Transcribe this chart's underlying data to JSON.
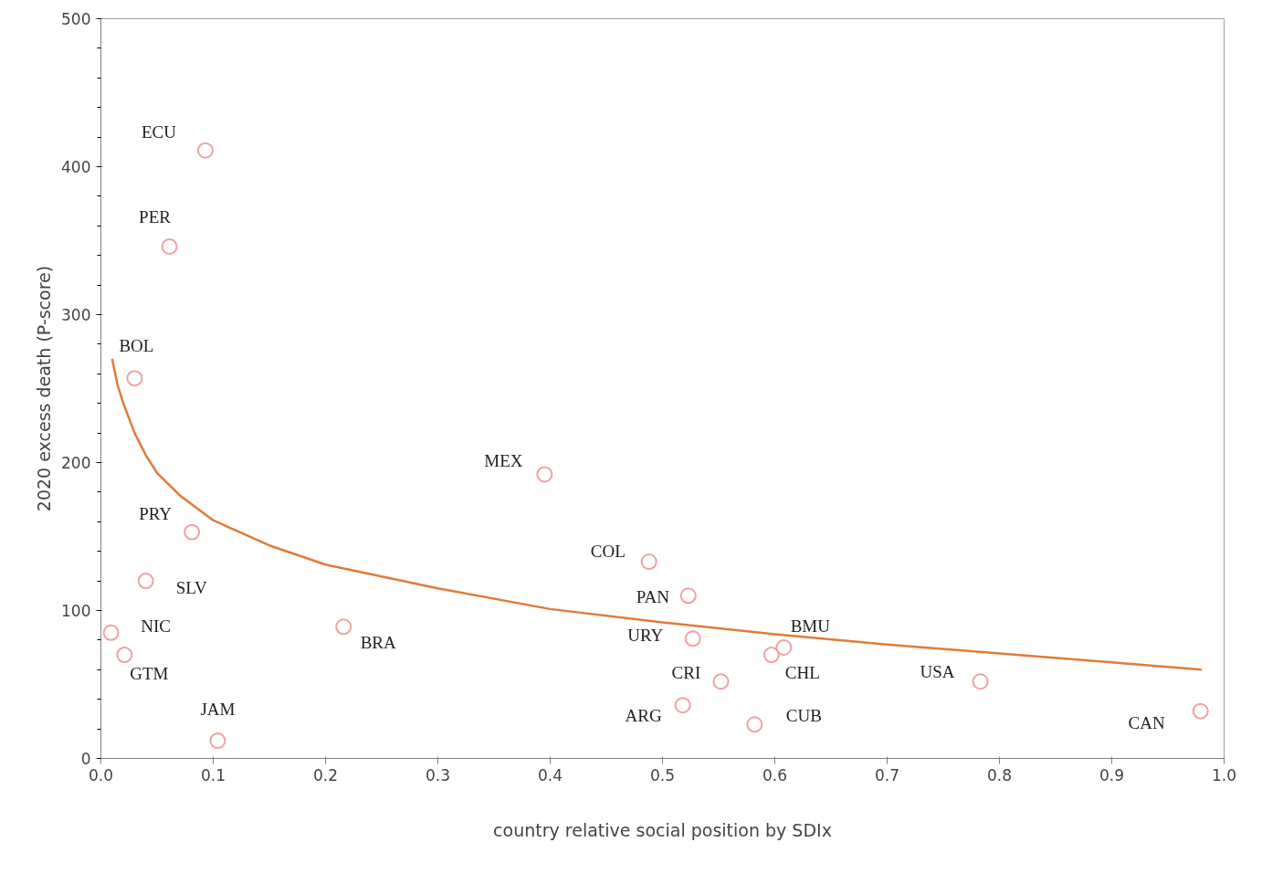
{
  "chart_data": {
    "type": "scatter",
    "xlabel": "country relative social position by SDIx",
    "ylabel": "2020 excess death (P-score)",
    "xlim": [
      0,
      1
    ],
    "ylim": [
      0,
      500
    ],
    "xticks": [
      {
        "value": 0,
        "label": "0.0"
      },
      0.1,
      0.2,
      0.3,
      0.4,
      0.5,
      0.6,
      0.7,
      0.8,
      0.9,
      {
        "value": 1,
        "label": "1.0"
      }
    ],
    "yticks": [
      0,
      100,
      200,
      300,
      400,
      500
    ],
    "grid": false,
    "series": [
      {
        "color": "#f0a0a0",
        "marker": "circle",
        "x": [
          0.093,
          0.061,
          0.03,
          0.395,
          0.081,
          0.488,
          0.04,
          0.523,
          0.009,
          0.216,
          0.527,
          0.021,
          0.608,
          0.597,
          0.552,
          0.783,
          0.518,
          0.582,
          0.979,
          0.104
        ],
        "values": [
          411,
          346,
          257,
          192,
          153,
          133,
          120,
          110,
          85,
          89,
          81,
          70,
          75,
          70,
          52,
          52,
          36,
          23,
          32,
          12
        ],
        "value_labels": [
          "ECU",
          "PER",
          "BOL",
          "MEX",
          "PRY",
          "COL",
          "SLV",
          "PAN",
          "NIC",
          "BRA",
          "URY",
          "GTM",
          "BMU",
          "CHL",
          "CRI",
          "USA",
          "ARG",
          "CUB",
          "CAN",
          "JAM"
        ]
      },
      {
        "type": "line",
        "color": "#e07b39",
        "line_style": "solid",
        "x": [
          0.01,
          0.015,
          0.02,
          0.03,
          0.04,
          0.05,
          0.07,
          0.1,
          0.15,
          0.2,
          0.3,
          0.4,
          0.5,
          0.6,
          0.7,
          0.8,
          0.9,
          0.98
        ],
        "values": [
          270,
          252,
          240,
          220,
          205,
          193,
          178,
          161,
          144,
          131,
          115,
          101,
          92,
          84,
          77,
          71,
          65,
          60
        ]
      }
    ]
  }
}
